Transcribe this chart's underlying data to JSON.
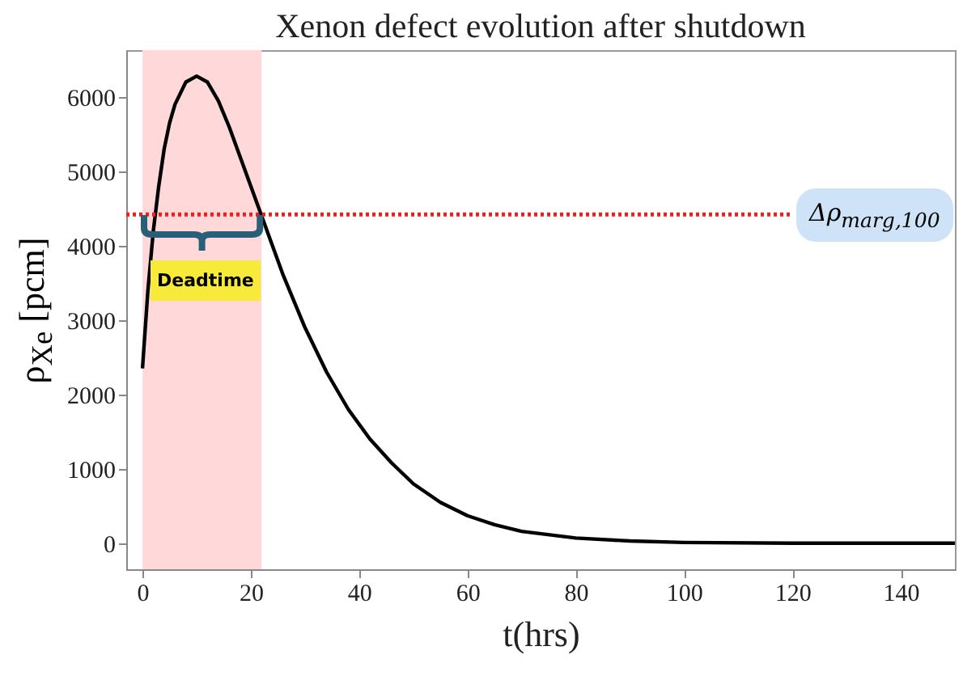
{
  "chart_data": {
    "type": "line",
    "title": "Xenon defect evolution after shutdown",
    "xlabel": "t(hrs)",
    "ylabel": "ρ$_{Xe}$ [pcm]",
    "series": [
      {
        "color": "#000000",
        "x": [
          0,
          1,
          2,
          3,
          4,
          5,
          6,
          8,
          10,
          12,
          14,
          16,
          18,
          20,
          22,
          24,
          26,
          28,
          30,
          34,
          38,
          42,
          46,
          50,
          55,
          60,
          65,
          70,
          80,
          90,
          100,
          120,
          150
        ],
        "values": [
          2350,
          3400,
          4200,
          4800,
          5300,
          5650,
          5900,
          6200,
          6280,
          6200,
          5950,
          5600,
          5200,
          4800,
          4400,
          4000,
          3600,
          3250,
          2900,
          2300,
          1800,
          1400,
          1080,
          800,
          550,
          370,
          250,
          160,
          70,
          30,
          10,
          0,
          0
        ]
      }
    ],
    "xlim": [
      -3,
      150
    ],
    "xticks": [
      0,
      20,
      40,
      60,
      80,
      100,
      120,
      140
    ],
    "ylim": [
      -350,
      6630
    ],
    "yticks": [
      0,
      1000,
      2000,
      3000,
      4000,
      5000,
      6000
    ],
    "ref_lines": [
      {
        "axis": "y",
        "value": 4420,
        "label": "Δρ$_{marg,100}$",
        "color": "#e8231f",
        "line_style": "dotted"
      }
    ],
    "bands": [
      {
        "axis": "x",
        "from": 0,
        "to": 22,
        "label": "Deadtime",
        "color": "#ffd9d9"
      }
    ],
    "grid": false,
    "marker": "none",
    "line_style": "solid"
  }
}
